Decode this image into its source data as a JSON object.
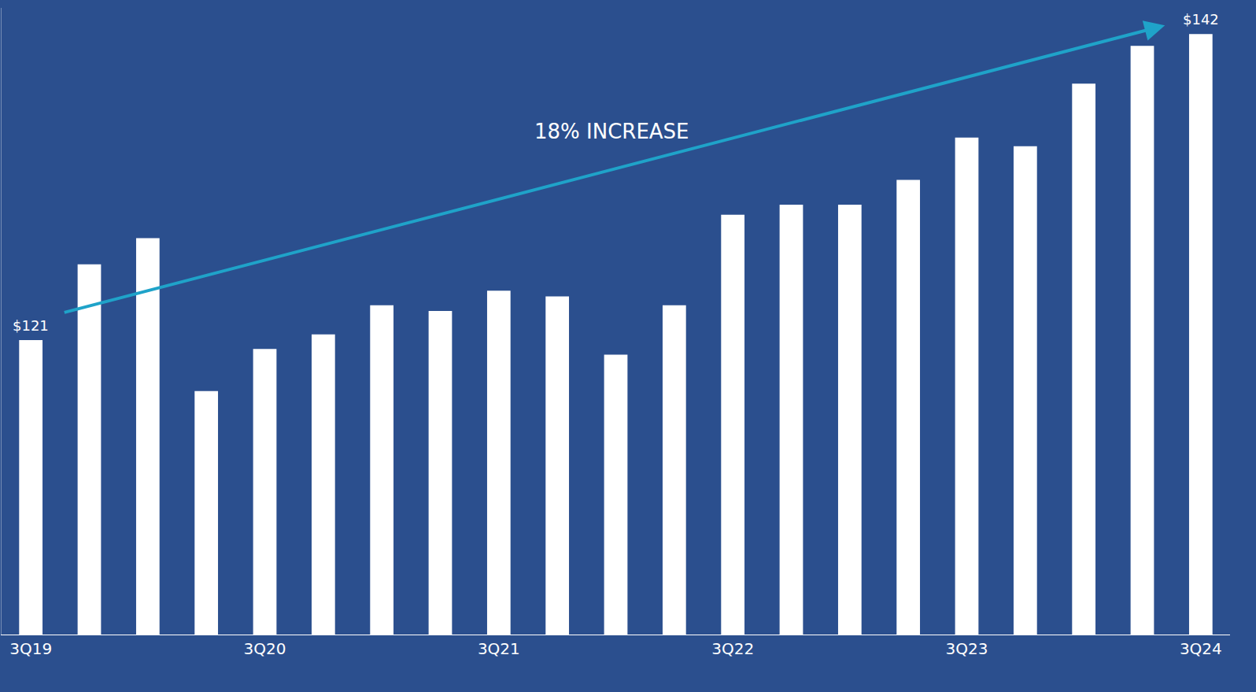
{
  "chart_data": {
    "type": "bar",
    "categories": [
      "3Q19",
      null,
      null,
      null,
      "3Q20",
      null,
      null,
      null,
      "3Q21",
      null,
      null,
      null,
      "3Q22",
      null,
      null,
      null,
      "3Q23",
      null,
      null,
      null,
      "3Q24"
    ],
    "values": [
      121.0,
      126.2,
      128.0,
      117.5,
      120.4,
      121.4,
      123.4,
      123.0,
      124.4,
      124.0,
      120.0,
      123.4,
      129.6,
      130.3,
      130.3,
      132.0,
      134.9,
      134.3,
      138.6,
      141.2,
      142.0
    ],
    "color": "#ffffff",
    "ylim": [
      100.8,
      143.8
    ],
    "tick_labels": "x",
    "grid": false,
    "annotations": [
      {
        "text": "$121",
        "category": "3Q19"
      },
      {
        "text": "$142",
        "category": "3Q24"
      },
      {
        "text": "18% INCREASE"
      }
    ]
  }
}
